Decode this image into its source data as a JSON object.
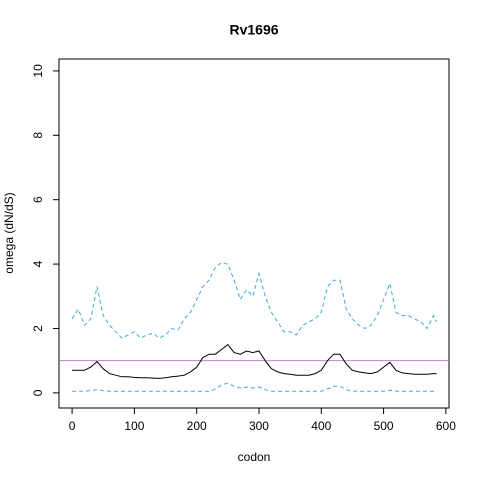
{
  "chart_data": {
    "type": "line",
    "title": "Rv1696",
    "xlabel": "codon",
    "ylabel": "omega (dN/dS)",
    "x": [
      0,
      10,
      20,
      30,
      40,
      50,
      60,
      70,
      80,
      90,
      100,
      110,
      120,
      130,
      140,
      150,
      160,
      170,
      180,
      190,
      200,
      210,
      220,
      230,
      240,
      250,
      260,
      270,
      280,
      290,
      300,
      310,
      320,
      330,
      340,
      350,
      360,
      370,
      380,
      390,
      400,
      410,
      420,
      430,
      440,
      450,
      460,
      470,
      480,
      490,
      500,
      510,
      520,
      530,
      540,
      550,
      560,
      570,
      580,
      585
    ],
    "series": [
      {
        "color": "#000000",
        "dash": false,
        "values": [
          0.7,
          0.7,
          0.7,
          0.8,
          0.97,
          0.75,
          0.6,
          0.55,
          0.5,
          0.5,
          0.48,
          0.47,
          0.47,
          0.46,
          0.45,
          0.47,
          0.5,
          0.52,
          0.55,
          0.65,
          0.8,
          1.1,
          1.2,
          1.2,
          1.35,
          1.5,
          1.25,
          1.2,
          1.3,
          1.25,
          1.3,
          1.0,
          0.75,
          0.65,
          0.6,
          0.58,
          0.55,
          0.55,
          0.55,
          0.6,
          0.7,
          1.0,
          1.2,
          1.2,
          0.9,
          0.7,
          0.65,
          0.62,
          0.6,
          0.65,
          0.8,
          0.95,
          0.7,
          0.62,
          0.6,
          0.58,
          0.58,
          0.58,
          0.6,
          0.6
        ]
      },
      {
        "color": "#3fa9e0",
        "dash": true,
        "values": [
          2.3,
          2.6,
          2.1,
          2.3,
          3.3,
          2.4,
          2.1,
          1.9,
          1.7,
          1.8,
          1.9,
          1.7,
          1.8,
          1.85,
          1.7,
          1.8,
          2.0,
          1.95,
          2.3,
          2.5,
          2.9,
          3.3,
          3.5,
          3.9,
          4.05,
          4.0,
          3.5,
          2.9,
          3.2,
          3.0,
          3.7,
          3.0,
          2.5,
          2.2,
          1.9,
          1.9,
          1.8,
          2.1,
          2.2,
          2.3,
          2.5,
          3.3,
          3.5,
          3.5,
          2.6,
          2.3,
          2.1,
          2.0,
          2.1,
          2.4,
          2.9,
          3.4,
          2.5,
          2.4,
          2.4,
          2.3,
          2.2,
          2.0,
          2.4,
          2.2
        ]
      },
      {
        "color": "#3fa9e0",
        "dash": true,
        "values": [
          0.05,
          0.05,
          0.05,
          0.07,
          0.1,
          0.07,
          0.05,
          0.05,
          0.05,
          0.05,
          0.05,
          0.05,
          0.05,
          0.05,
          0.05,
          0.05,
          0.05,
          0.05,
          0.05,
          0.05,
          0.05,
          0.05,
          0.05,
          0.12,
          0.25,
          0.3,
          0.2,
          0.15,
          0.18,
          0.15,
          0.18,
          0.1,
          0.05,
          0.05,
          0.05,
          0.05,
          0.05,
          0.05,
          0.05,
          0.05,
          0.05,
          0.12,
          0.2,
          0.2,
          0.1,
          0.05,
          0.05,
          0.05,
          0.05,
          0.05,
          0.05,
          0.08,
          0.05,
          0.05,
          0.05,
          0.05,
          0.05,
          0.05,
          0.05,
          0.05
        ]
      }
    ],
    "hline": {
      "value": 1,
      "color": "#c27fcf"
    },
    "xlim": [
      -21,
      605
    ],
    "ylim": [
      -0.47,
      10.37
    ],
    "xticks": [
      0,
      100,
      200,
      300,
      400,
      500,
      600
    ],
    "yticks": [
      0,
      2,
      4,
      6,
      8,
      10
    ]
  }
}
